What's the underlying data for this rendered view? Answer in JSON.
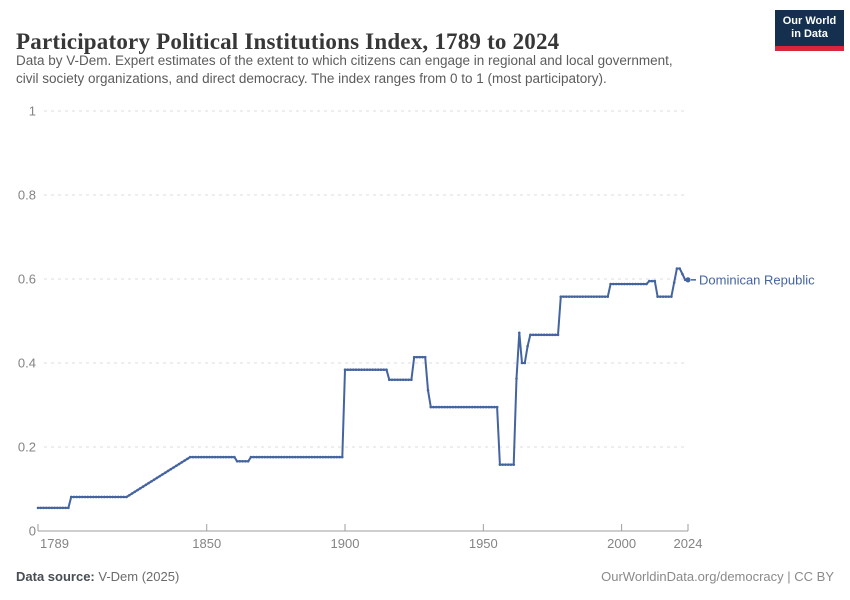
{
  "header": {
    "title": "Participatory Political Institutions Index, 1789 to 2024",
    "subtitle_line1": "Data by V-Dem. Expert estimates of the extent to which citizens can engage in regional and local government,",
    "subtitle_line2": "civil society organizations, and direct democracy. The index ranges from 0 to 1 (most participatory).",
    "logo": {
      "line1": "Our World",
      "line2": "in Data",
      "bg": "#15304f",
      "bar": "#d8273d"
    }
  },
  "chart_data": {
    "type": "line",
    "title": "Participatory Political Institutions Index, 1789 to 2024",
    "xlabel": "",
    "ylabel": "",
    "xlim": [
      1789,
      2024
    ],
    "ylim": [
      0,
      1
    ],
    "x_ticks": [
      1789,
      1850,
      1900,
      1950,
      2000,
      2024
    ],
    "y_ticks": [
      0,
      0.2,
      0.4,
      0.6,
      0.8,
      1
    ],
    "grid": "dashed-horizontal",
    "legend_position": "end-of-line-label",
    "series": [
      {
        "name": "Dominican Republic",
        "color": "#4464a0",
        "points": [
          [
            1789,
            0.055
          ],
          [
            1800,
            0.055
          ],
          [
            1801,
            0.081
          ],
          [
            1821,
            0.081
          ],
          [
            1844,
            0.176
          ],
          [
            1860,
            0.176
          ],
          [
            1861,
            0.166
          ],
          [
            1865,
            0.166
          ],
          [
            1866,
            0.176
          ],
          [
            1899,
            0.176
          ],
          [
            1900,
            0.384
          ],
          [
            1915,
            0.384
          ],
          [
            1916,
            0.36
          ],
          [
            1924,
            0.36
          ],
          [
            1925,
            0.414
          ],
          [
            1929,
            0.414
          ],
          [
            1930,
            0.335
          ],
          [
            1931,
            0.295
          ],
          [
            1955,
            0.295
          ],
          [
            1956,
            0.158
          ],
          [
            1961,
            0.158
          ],
          [
            1962,
            0.363
          ],
          [
            1963,
            0.472
          ],
          [
            1964,
            0.4
          ],
          [
            1965,
            0.4
          ],
          [
            1966,
            0.44
          ],
          [
            1967,
            0.467
          ],
          [
            1977,
            0.467
          ],
          [
            1978,
            0.558
          ],
          [
            1995,
            0.558
          ],
          [
            1996,
            0.588
          ],
          [
            2009,
            0.588
          ],
          [
            2010,
            0.595
          ],
          [
            2012,
            0.595
          ],
          [
            2013,
            0.558
          ],
          [
            2018,
            0.558
          ],
          [
            2020,
            0.625
          ],
          [
            2021,
            0.625
          ],
          [
            2023,
            0.598
          ],
          [
            2024,
            0.598
          ]
        ]
      }
    ],
    "colors": {
      "grid": "#dcdcdc",
      "axis": "#9e9e9e",
      "tick_label": "#848484"
    }
  },
  "footer": {
    "source_label": "Data source:",
    "source_value": " V-Dem (2025)",
    "right_note": "OurWorldinData.org/democracy | CC BY"
  }
}
